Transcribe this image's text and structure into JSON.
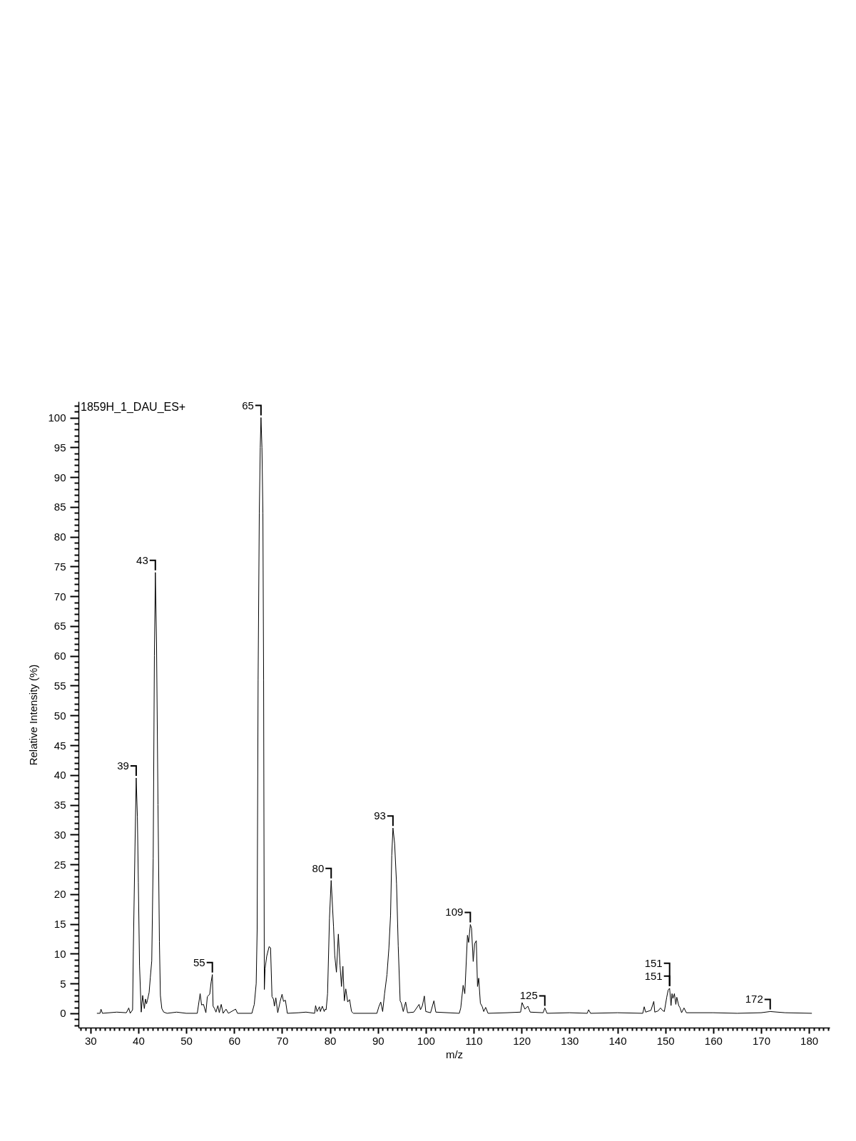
{
  "chart_data": {
    "type": "line",
    "title": "1859H_1_DAU_ES+",
    "xlabel": "m/z",
    "ylabel": "Relative Intensity (%)",
    "color": "#000000",
    "x": [
      31.35,
      32.0,
      32.2,
      32.5,
      35.5,
      37.5,
      38.0,
      38.3,
      38.8,
      38.95,
      39.3,
      39.55,
      39.8,
      40.0,
      40.25,
      40.6,
      40.9,
      41.25,
      41.5,
      41.7,
      41.9,
      42.25,
      42.5,
      42.8,
      43.1,
      43.35,
      43.55,
      43.8,
      44.1,
      44.4,
      44.6,
      44.9,
      45.3,
      46.0,
      48.0,
      50.0,
      52.3,
      52.9,
      53.2,
      53.6,
      54.1,
      54.4,
      54.9,
      55.2,
      55.45,
      55.6,
      55.9,
      56.2,
      56.6,
      56.9,
      57.3,
      57.7,
      58.3,
      58.8,
      60.3,
      60.7,
      63.7,
      64.2,
      64.6,
      64.8,
      65.0,
      65.25,
      65.45,
      65.6,
      65.8,
      66.0,
      66.15,
      66.3,
      66.45,
      66.8,
      67.3,
      67.6,
      67.9,
      68.2,
      68.4,
      68.7,
      69.1,
      69.6,
      70.0,
      70.3,
      70.7,
      71.1,
      73.5,
      75.0,
      76.8,
      77.0,
      77.3,
      77.8,
      78.0,
      78.4,
      78.8,
      79.0,
      79.2,
      79.5,
      79.9,
      80.25,
      80.75,
      81.0,
      81.35,
      81.75,
      82.1,
      82.4,
      82.7,
      83.0,
      83.3,
      83.7,
      84.1,
      84.5,
      84.9,
      89.8,
      90.2,
      90.6,
      91.0,
      91.4,
      91.9,
      92.3,
      92.65,
      92.9,
      93.15,
      93.5,
      93.9,
      94.25,
      94.65,
      94.9,
      95.3,
      95.8,
      96.2,
      97.5,
      98.6,
      98.9,
      99.3,
      99.7,
      100.0,
      101.0,
      101.7,
      102.1,
      107.0,
      107.3,
      107.8,
      108.15,
      108.7,
      108.95,
      109.3,
      109.55,
      109.9,
      110.2,
      110.55,
      110.8,
      111.05,
      111.4,
      111.8,
      112.1,
      112.5,
      113.0,
      117.0,
      119.8,
      120.1,
      120.7,
      121.3,
      121.8,
      124.5,
      124.85,
      125.3,
      130.0,
      133.7,
      134.0,
      134.4,
      140.0,
      145.3,
      145.6,
      145.9,
      147.0,
      147.6,
      147.8,
      148.5,
      149.0,
      149.4,
      149.8,
      150.3,
      150.6,
      150.9,
      151.2,
      151.4,
      151.6,
      151.9,
      152.2,
      152.4,
      152.8,
      153.1,
      153.4,
      153.9,
      154.4,
      160.0,
      165.0,
      170.0,
      171.9,
      175.0,
      180.6
    ],
    "values": [
      0,
      0,
      0.7,
      0,
      0.2,
      0.1,
      0.9,
      0,
      0.6,
      10.4,
      28,
      39.5,
      33,
      22,
      8,
      0.2,
      3.0,
      0.8,
      2.4,
      1.6,
      2.2,
      3.5,
      6.0,
      8.8,
      26,
      60,
      74,
      62,
      35,
      12,
      3,
      0.8,
      0.2,
      0,
      0.2,
      0,
      0,
      3.3,
      1.4,
      1.5,
      0.1,
      2.8,
      3.2,
      5.3,
      6.5,
      1.2,
      0.8,
      0.2,
      1.3,
      0.1,
      1.5,
      0,
      0.7,
      0,
      0.7,
      0,
      0,
      1.5,
      5,
      14,
      56,
      84,
      95,
      100,
      95,
      84,
      56,
      4,
      7.5,
      9.6,
      11.2,
      11.0,
      2.8,
      2.4,
      1.2,
      2.6,
      0.1,
      2.0,
      3.2,
      2.0,
      2.2,
      0,
      0.1,
      0.2,
      0,
      1.3,
      0.3,
      1.1,
      0.3,
      1.2,
      0.3,
      0.7,
      0.6,
      3.3,
      16,
      22.3,
      14.5,
      9.7,
      6.9,
      13.3,
      8.1,
      4.5,
      7.9,
      2.1,
      4.1,
      1.9,
      2.3,
      0.3,
      0,
      0,
      1.1,
      1.9,
      0.3,
      3.3,
      6.5,
      10.9,
      16.5,
      26.5,
      31.1,
      28.5,
      21.7,
      11.3,
      2.1,
      1.7,
      0.3,
      1.9,
      0.1,
      0.2,
      1.5,
      0.6,
      1.3,
      2.9,
      0.3,
      0.1,
      2.1,
      0.2,
      0,
      0.9,
      4.7,
      3.3,
      13.1,
      11.9,
      14.9,
      14.3,
      8.7,
      11.7,
      12.2,
      4.5,
      5.9,
      1.7,
      1.1,
      0.3,
      1.0,
      0,
      0.1,
      0.2,
      1.8,
      0.7,
      1.2,
      0.2,
      0.1,
      0.9,
      0,
      0.1,
      0,
      0.6,
      0,
      0.1,
      0,
      1.1,
      0.2,
      0.5,
      2.0,
      0.2,
      0.4,
      0.9,
      0.5,
      0.3,
      2.7,
      3.9,
      4.2,
      1.3,
      3.3,
      2.5,
      3.3,
      1.5,
      2.7,
      1.3,
      0.9,
      0.1,
      0.9,
      0.1,
      0.1,
      0,
      0.1,
      0.3,
      0.1,
      0
    ],
    "xlim": [
      27.5,
      184.3
    ],
    "ylim": [
      -2.4,
      102.7
    ],
    "xticks": [
      {
        "value": 28,
        "label": null
      },
      {
        "value": 29,
        "label": null
      },
      30,
      {
        "value": 31,
        "label": null
      },
      {
        "value": 32,
        "label": null
      },
      {
        "value": 33,
        "label": null
      },
      {
        "value": 34,
        "label": null
      },
      {
        "value": 35,
        "label": null
      },
      {
        "value": 36,
        "label": null
      },
      {
        "value": 37,
        "label": null
      },
      {
        "value": 38,
        "label": null
      },
      {
        "value": 39,
        "label": null
      },
      40,
      {
        "value": 41,
        "label": null
      },
      {
        "value": 42,
        "label": null
      },
      {
        "value": 43,
        "label": null
      },
      {
        "value": 44,
        "label": null
      },
      {
        "value": 45,
        "label": null
      },
      {
        "value": 46,
        "label": null
      },
      {
        "value": 47,
        "label": null
      },
      {
        "value": 48,
        "label": null
      },
      {
        "value": 49,
        "label": null
      },
      50,
      {
        "value": 51,
        "label": null
      },
      {
        "value": 52,
        "label": null
      },
      {
        "value": 53,
        "label": null
      },
      {
        "value": 54,
        "label": null
      },
      {
        "value": 55,
        "label": null
      },
      {
        "value": 56,
        "label": null
      },
      {
        "value": 57,
        "label": null
      },
      {
        "value": 58,
        "label": null
      },
      {
        "value": 59,
        "label": null
      },
      60,
      {
        "value": 61,
        "label": null
      },
      {
        "value": 62,
        "label": null
      },
      {
        "value": 63,
        "label": null
      },
      {
        "value": 64,
        "label": null
      },
      {
        "value": 65,
        "label": null
      },
      {
        "value": 66,
        "label": null
      },
      {
        "value": 67,
        "label": null
      },
      {
        "value": 68,
        "label": null
      },
      {
        "value": 69,
        "label": null
      },
      70,
      {
        "value": 71,
        "label": null
      },
      {
        "value": 72,
        "label": null
      },
      {
        "value": 73,
        "label": null
      },
      {
        "value": 74,
        "label": null
      },
      {
        "value": 75,
        "label": null
      },
      {
        "value": 76,
        "label": null
      },
      {
        "value": 77,
        "label": null
      },
      {
        "value": 78,
        "label": null
      },
      {
        "value": 79,
        "label": null
      },
      80,
      {
        "value": 81,
        "label": null
      },
      {
        "value": 82,
        "label": null
      },
      {
        "value": 83,
        "label": null
      },
      {
        "value": 84,
        "label": null
      },
      {
        "value": 85,
        "label": null
      },
      {
        "value": 86,
        "label": null
      },
      {
        "value": 87,
        "label": null
      },
      {
        "value": 88,
        "label": null
      },
      {
        "value": 89,
        "label": null
      },
      90,
      {
        "value": 91,
        "label": null
      },
      {
        "value": 92,
        "label": null
      },
      {
        "value": 93,
        "label": null
      },
      {
        "value": 94,
        "label": null
      },
      {
        "value": 95,
        "label": null
      },
      {
        "value": 96,
        "label": null
      },
      {
        "value": 97,
        "label": null
      },
      {
        "value": 98,
        "label": null
      },
      {
        "value": 99,
        "label": null
      },
      100,
      {
        "value": 101,
        "label": null
      },
      {
        "value": 102,
        "label": null
      },
      {
        "value": 103,
        "label": null
      },
      {
        "value": 104,
        "label": null
      },
      {
        "value": 105,
        "label": null
      },
      {
        "value": 106,
        "label": null
      },
      {
        "value": 107,
        "label": null
      },
      {
        "value": 108,
        "label": null
      },
      {
        "value": 109,
        "label": null
      },
      110,
      {
        "value": 111,
        "label": null
      },
      {
        "value": 112,
        "label": null
      },
      {
        "value": 113,
        "label": null
      },
      {
        "value": 114,
        "label": null
      },
      {
        "value": 115,
        "label": null
      },
      {
        "value": 116,
        "label": null
      },
      {
        "value": 117,
        "label": null
      },
      {
        "value": 118,
        "label": null
      },
      {
        "value": 119,
        "label": null
      },
      120,
      {
        "value": 121,
        "label": null
      },
      {
        "value": 122,
        "label": null
      },
      {
        "value": 123,
        "label": null
      },
      {
        "value": 124,
        "label": null
      },
      {
        "value": 125,
        "label": null
      },
      {
        "value": 126,
        "label": null
      },
      {
        "value": 127,
        "label": null
      },
      {
        "value": 128,
        "label": null
      },
      {
        "value": 129,
        "label": null
      },
      130,
      {
        "value": 131,
        "label": null
      },
      {
        "value": 132,
        "label": null
      },
      {
        "value": 133,
        "label": null
      },
      {
        "value": 134,
        "label": null
      },
      {
        "value": 135,
        "label": null
      },
      {
        "value": 136,
        "label": null
      },
      {
        "value": 137,
        "label": null
      },
      {
        "value": 138,
        "label": null
      },
      {
        "value": 139,
        "label": null
      },
      140,
      {
        "value": 141,
        "label": null
      },
      {
        "value": 142,
        "label": null
      },
      {
        "value": 143,
        "label": null
      },
      {
        "value": 144,
        "label": null
      },
      {
        "value": 145,
        "label": null
      },
      {
        "value": 146,
        "label": null
      },
      {
        "value": 147,
        "label": null
      },
      {
        "value": 148,
        "label": null
      },
      {
        "value": 149,
        "label": null
      },
      150,
      {
        "value": 151,
        "label": null
      },
      {
        "value": 152,
        "label": null
      },
      {
        "value": 153,
        "label": null
      },
      {
        "value": 154,
        "label": null
      },
      {
        "value": 155,
        "label": null
      },
      {
        "value": 156,
        "label": null
      },
      {
        "value": 157,
        "label": null
      },
      {
        "value": 158,
        "label": null
      },
      {
        "value": 159,
        "label": null
      },
      160,
      {
        "value": 161,
        "label": null
      },
      {
        "value": 162,
        "label": null
      },
      {
        "value": 163,
        "label": null
      },
      {
        "value": 164,
        "label": null
      },
      {
        "value": 165,
        "label": null
      },
      {
        "value": 166,
        "label": null
      },
      {
        "value": 167,
        "label": null
      },
      {
        "value": 168,
        "label": null
      },
      {
        "value": 169,
        "label": null
      },
      170,
      {
        "value": 171,
        "label": null
      },
      {
        "value": 172,
        "label": null
      },
      {
        "value": 173,
        "label": null
      },
      {
        "value": 174,
        "label": null
      },
      {
        "value": 175,
        "label": null
      },
      {
        "value": 176,
        "label": null
      },
      {
        "value": 177,
        "label": null
      },
      {
        "value": 178,
        "label": null
      },
      {
        "value": 179,
        "label": null
      },
      180,
      {
        "value": 181,
        "label": null
      },
      {
        "value": 182,
        "label": null
      },
      {
        "value": 183,
        "label": null
      },
      {
        "value": 184,
        "label": null
      }
    ],
    "yticks": [
      {
        "value": -2,
        "label": null
      },
      {
        "value": -1,
        "label": null
      },
      0,
      {
        "value": 1,
        "label": null
      },
      {
        "value": 2,
        "label": null
      },
      {
        "value": 3,
        "label": null
      },
      {
        "value": 4,
        "label": null
      },
      5,
      {
        "value": 6,
        "label": null
      },
      {
        "value": 7,
        "label": null
      },
      {
        "value": 8,
        "label": null
      },
      {
        "value": 9,
        "label": null
      },
      10,
      {
        "value": 11,
        "label": null
      },
      {
        "value": 12,
        "label": null
      },
      {
        "value": 13,
        "label": null
      },
      {
        "value": 14,
        "label": null
      },
      15,
      {
        "value": 16,
        "label": null
      },
      {
        "value": 17,
        "label": null
      },
      {
        "value": 18,
        "label": null
      },
      {
        "value": 19,
        "label": null
      },
      20,
      {
        "value": 21,
        "label": null
      },
      {
        "value": 22,
        "label": null
      },
      {
        "value": 23,
        "label": null
      },
      {
        "value": 24,
        "label": null
      },
      25,
      {
        "value": 26,
        "label": null
      },
      {
        "value": 27,
        "label": null
      },
      {
        "value": 28,
        "label": null
      },
      {
        "value": 29,
        "label": null
      },
      30,
      {
        "value": 31,
        "label": null
      },
      {
        "value": 32,
        "label": null
      },
      {
        "value": 33,
        "label": null
      },
      {
        "value": 34,
        "label": null
      },
      35,
      {
        "value": 36,
        "label": null
      },
      {
        "value": 37,
        "label": null
      },
      {
        "value": 38,
        "label": null
      },
      {
        "value": 39,
        "label": null
      },
      40,
      {
        "value": 41,
        "label": null
      },
      {
        "value": 42,
        "label": null
      },
      {
        "value": 43,
        "label": null
      },
      {
        "value": 44,
        "label": null
      },
      45,
      {
        "value": 46,
        "label": null
      },
      {
        "value": 47,
        "label": null
      },
      {
        "value": 48,
        "label": null
      },
      {
        "value": 49,
        "label": null
      },
      50,
      {
        "value": 51,
        "label": null
      },
      {
        "value": 52,
        "label": null
      },
      {
        "value": 53,
        "label": null
      },
      {
        "value": 54,
        "label": null
      },
      55,
      {
        "value": 56,
        "label": null
      },
      {
        "value": 57,
        "label": null
      },
      {
        "value": 58,
        "label": null
      },
      {
        "value": 59,
        "label": null
      },
      60,
      {
        "value": 61,
        "label": null
      },
      {
        "value": 62,
        "label": null
      },
      {
        "value": 63,
        "label": null
      },
      {
        "value": 64,
        "label": null
      },
      65,
      {
        "value": 66,
        "label": null
      },
      {
        "value": 67,
        "label": null
      },
      {
        "value": 68,
        "label": null
      },
      {
        "value": 69,
        "label": null
      },
      70,
      {
        "value": 71,
        "label": null
      },
      {
        "value": 72,
        "label": null
      },
      {
        "value": 73,
        "label": null
      },
      {
        "value": 74,
        "label": null
      },
      75,
      {
        "value": 76,
        "label": null
      },
      {
        "value": 77,
        "label": null
      },
      {
        "value": 78,
        "label": null
      },
      {
        "value": 79,
        "label": null
      },
      80,
      {
        "value": 81,
        "label": null
      },
      {
        "value": 82,
        "label": null
      },
      {
        "value": 83,
        "label": null
      },
      {
        "value": 84,
        "label": null
      },
      85,
      {
        "value": 86,
        "label": null
      },
      {
        "value": 87,
        "label": null
      },
      {
        "value": 88,
        "label": null
      },
      {
        "value": 89,
        "label": null
      },
      90,
      {
        "value": 91,
        "label": null
      },
      {
        "value": 92,
        "label": null
      },
      {
        "value": 93,
        "label": null
      },
      {
        "value": 94,
        "label": null
      },
      95,
      {
        "value": 96,
        "label": null
      },
      {
        "value": 97,
        "label": null
      },
      {
        "value": 98,
        "label": null
      },
      {
        "value": 99,
        "label": null
      },
      100,
      {
        "value": 101,
        "label": null
      },
      {
        "value": 102,
        "label": null
      }
    ],
    "annotations": [
      {
        "text": "39",
        "x": 39.55,
        "y": 39.5
      },
      {
        "text": "43",
        "x": 43.55,
        "y": 74
      },
      {
        "text": "55",
        "x": 55.45,
        "y": 6.5
      },
      {
        "text": "65",
        "x": 65.6,
        "y": 100
      },
      {
        "text": "80",
        "x": 80.25,
        "y": 22.3
      },
      {
        "text": "93",
        "x": 93.15,
        "y": 31.1
      },
      {
        "text": "109",
        "x": 109.3,
        "y": 14.9
      },
      {
        "text": "125",
        "x": 124.85,
        "y": 0.9
      },
      {
        "text": "151",
        "x": 150.9,
        "y": 4.2
      },
      {
        "text": "151",
        "x": 150.9,
        "y": 4.2
      },
      {
        "text": "172",
        "x": 171.9,
        "y": 0.3
      }
    ]
  }
}
